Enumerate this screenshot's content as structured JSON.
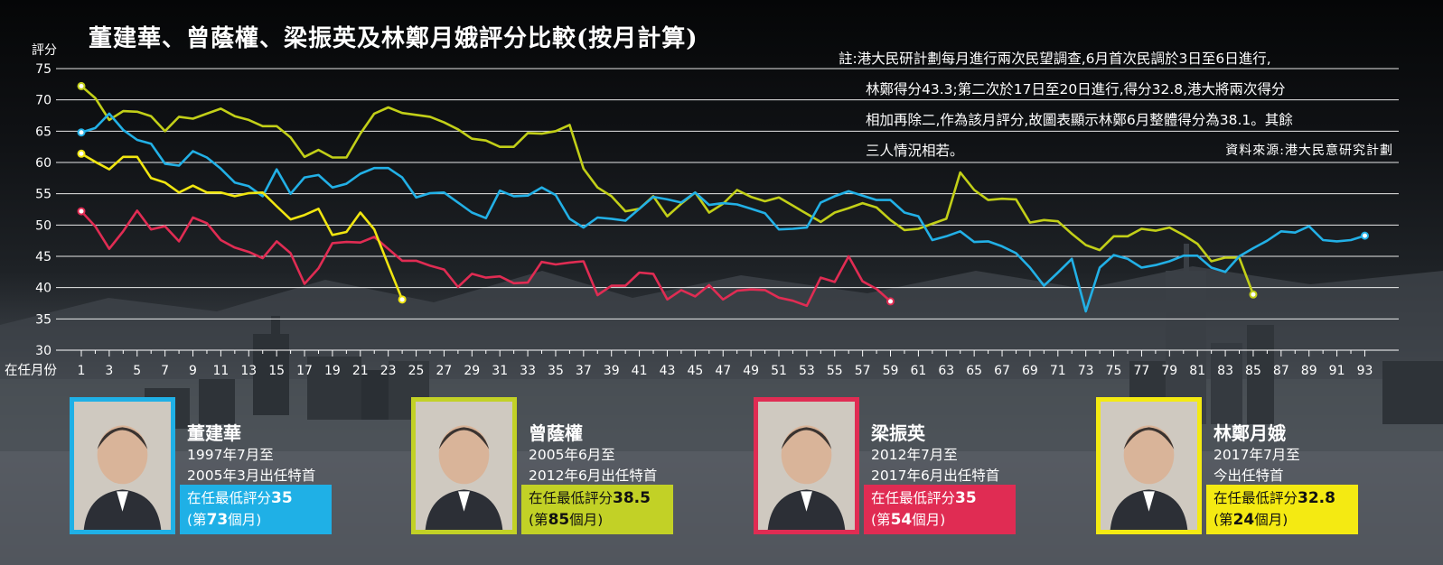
{
  "title": "董建華、曾蔭權、梁振英及林鄭月娥評分比較(按月計算)",
  "note": {
    "lines": [
      "註:港大民研計劃每月進行兩次民望調查,6月首次民調於3日至6日進行,",
      "林鄭得分43.3;第二次於17日至20日進行,得分32.8,港大將兩次得分",
      "相加再除二,作為該月評分,故圖表顯示林鄭6月整體得分為38.1。其餘",
      "三人情況相若。"
    ],
    "source": "資料來源:港大民意研究計劃"
  },
  "chart_data": {
    "type": "line",
    "ylabel": "評分",
    "xlabel": "在任月份",
    "ylim": [
      30,
      75
    ],
    "yticks": [
      30,
      35,
      40,
      45,
      50,
      55,
      60,
      65,
      70,
      75
    ],
    "xlim": [
      1,
      93
    ],
    "xticks": [
      1,
      3,
      5,
      7,
      9,
      11,
      13,
      15,
      17,
      19,
      21,
      23,
      25,
      27,
      29,
      31,
      33,
      35,
      37,
      39,
      41,
      43,
      45,
      47,
      49,
      51,
      53,
      55,
      57,
      59,
      61,
      63,
      65,
      67,
      69,
      71,
      73,
      75,
      77,
      79,
      81,
      83,
      85,
      87,
      89,
      91,
      93
    ],
    "grid": true,
    "series": [
      {
        "name": "董建華",
        "color": "#22b0e6",
        "values": [
          64.8,
          65.5,
          67.8,
          65.2,
          63.6,
          63.0,
          59.8,
          59.5,
          61.8,
          60.8,
          59.0,
          56.8,
          56.2,
          54.6,
          58.9,
          55.0,
          57.6,
          58.0,
          56.0,
          56.6,
          58.2,
          59.1,
          59.1,
          57.6,
          54.4,
          55.1,
          55.2,
          53.6,
          52.0,
          51.1,
          55.5,
          54.6,
          54.7,
          56.0,
          54.8,
          51.0,
          49.6,
          51.2,
          51.0,
          50.7,
          52.6,
          54.5,
          54.1,
          53.6,
          55.2,
          53.2,
          53.5,
          53.3,
          52.6,
          51.9,
          49.3,
          49.4,
          49.6,
          53.6,
          54.6,
          55.4,
          54.7,
          54.0,
          54.0,
          52.0,
          51.4,
          47.6,
          48.2,
          49.0,
          47.3,
          47.4,
          46.6,
          45.5,
          43.2,
          40.3,
          42.4,
          44.6,
          36.2,
          43.2,
          45.2,
          44.6,
          43.2,
          43.6,
          44.2,
          45.1,
          45.1,
          43.2,
          42.5,
          45.0,
          46.3,
          47.5,
          49.0,
          48.8,
          49.8,
          47.6,
          47.4,
          47.6,
          48.3
        ]
      },
      {
        "name": "曾蔭權",
        "color": "#c2cf18",
        "values": [
          72.2,
          70.3,
          66.8,
          68.2,
          68.1,
          67.4,
          65.0,
          67.3,
          67.0,
          67.8,
          68.6,
          67.4,
          66.8,
          65.8,
          65.8,
          64.0,
          60.9,
          62.0,
          60.8,
          60.8,
          64.6,
          67.8,
          68.8,
          67.9,
          67.6,
          67.3,
          66.4,
          65.3,
          63.8,
          63.5,
          62.5,
          62.5,
          64.7,
          64.6,
          65.0,
          66.0,
          59.0,
          56.0,
          54.6,
          52.2,
          52.6,
          54.6,
          51.4,
          53.4,
          55.2,
          52.0,
          53.4,
          55.6,
          54.5,
          53.8,
          54.4,
          53.1,
          51.8,
          50.5,
          52.0,
          52.7,
          53.5,
          52.8,
          50.8,
          49.2,
          49.4,
          50.2,
          51.0,
          58.4,
          55.6,
          54.0,
          54.2,
          54.1,
          50.4,
          50.8,
          50.6,
          48.6,
          46.8,
          46.0,
          48.2,
          48.2,
          49.4,
          49.1,
          49.6,
          48.4,
          47.0,
          44.2,
          44.8,
          44.8,
          38.9
        ]
      },
      {
        "name": "梁振英",
        "color": "#e02c53",
        "values": [
          52.2,
          49.8,
          46.2,
          49.0,
          52.3,
          49.3,
          49.8,
          47.4,
          51.2,
          50.3,
          47.6,
          46.4,
          45.7,
          44.7,
          47.4,
          45.5,
          40.6,
          43.1,
          47.1,
          47.3,
          47.2,
          48.1,
          46.2,
          44.3,
          44.3,
          43.5,
          42.9,
          40.1,
          42.2,
          41.6,
          41.8,
          40.7,
          40.8,
          44.1,
          43.7,
          44.0,
          44.2,
          38.8,
          40.3,
          40.3,
          42.4,
          42.2,
          38.1,
          39.6,
          38.6,
          40.4,
          38.1,
          39.5,
          39.7,
          39.6,
          38.4,
          37.9,
          37.1,
          41.6,
          40.9,
          45.0,
          41.0,
          39.8,
          37.8
        ]
      },
      {
        "name": "林鄭月娥",
        "color": "#f0e510",
        "values": [
          61.4,
          60.1,
          58.9,
          60.9,
          60.9,
          57.5,
          56.8,
          55.2,
          56.3,
          55.2,
          55.2,
          54.6,
          55.1,
          55.2,
          53.0,
          50.9,
          51.6,
          52.6,
          48.4,
          48.9,
          52.0,
          49.3,
          43.6,
          38.1
        ]
      }
    ],
    "endpoint_markers": [
      {
        "series": "董建華",
        "x": 93,
        "y": 48.3
      },
      {
        "series": "曾蔭權",
        "x": 85,
        "y": 38.9
      },
      {
        "series": "梁振英",
        "x": 59,
        "y": 37.8
      },
      {
        "series": "林鄭月娥",
        "x": 24,
        "y": 38.1
      }
    ]
  },
  "cards": [
    {
      "name": "董建華",
      "term1": "1997年7月至",
      "term2": "2005年3月出任特首",
      "low_label": "在任最低評分",
      "low_value": "35",
      "low_month_pre": "(第",
      "low_month": "73",
      "low_month_post": "個月)",
      "color": "#1fb0e6",
      "text_dark": false
    },
    {
      "name": "曾蔭權",
      "term1": "2005年6月至",
      "term2": "2012年6月出任特首",
      "low_label": "在任最低評分",
      "low_value": "38.5",
      "low_month_pre": "(第",
      "low_month": "85",
      "low_month_post": "個月)",
      "color": "#c2d126",
      "text_dark": true
    },
    {
      "name": "梁振英",
      "term1": "2012年7月至",
      "term2": "2017年6月出任特首",
      "low_label": "在任最低評分",
      "low_value": "35",
      "low_month_pre": "(第",
      "low_month": "54",
      "low_month_post": "個月)",
      "color": "#e02c53",
      "text_dark": false
    },
    {
      "name": "林鄭月娥",
      "term1": "2017年7月至",
      "term2": "今出任特首",
      "low_label": "在任最低評分",
      "low_value": "32.8",
      "low_month_pre": "(第",
      "low_month": "24",
      "low_month_post": "個月)",
      "color": "#f4ea12",
      "text_dark": true
    }
  ],
  "icons": [
    "portrait-icon"
  ]
}
